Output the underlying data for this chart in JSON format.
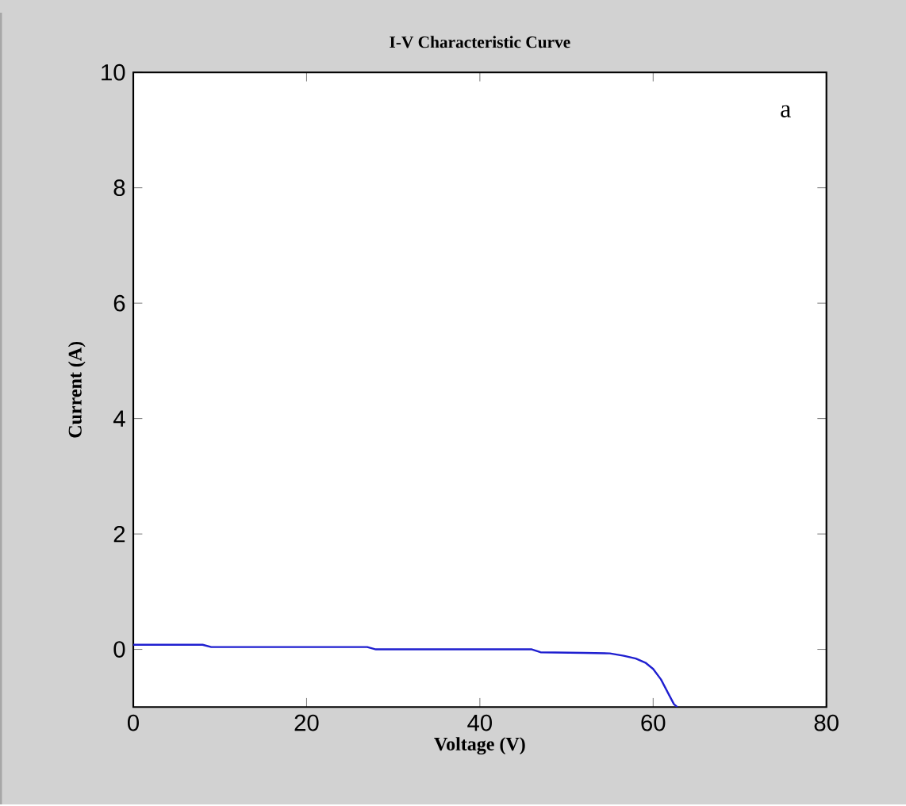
{
  "chart_data": {
    "type": "line",
    "title": "I-V Characteristic Curve",
    "xlabel": "Voltage (V)",
    "ylabel": "Current (A)",
    "annotations": [
      "a"
    ],
    "series": [
      {
        "color": "#1f1fd0",
        "x": [
          0,
          8,
          9,
          27,
          28,
          46,
          47,
          52,
          55,
          56.6,
          58,
          59.1,
          60,
          60.9,
          61.7,
          62.4,
          62.8
        ],
        "values": [
          0.08,
          0.08,
          0.04,
          0.04,
          0.0,
          0.0,
          -0.05,
          -0.06,
          -0.07,
          -0.11,
          -0.16,
          -0.23,
          -0.34,
          -0.52,
          -0.75,
          -0.95,
          -1.0
        ]
      }
    ],
    "xlim": [
      0,
      80
    ],
    "ylim": [
      -1,
      10
    ],
    "xticks": [
      0,
      20,
      40,
      60,
      80
    ],
    "yticks": [
      0,
      2,
      4,
      6,
      8,
      10
    ]
  }
}
